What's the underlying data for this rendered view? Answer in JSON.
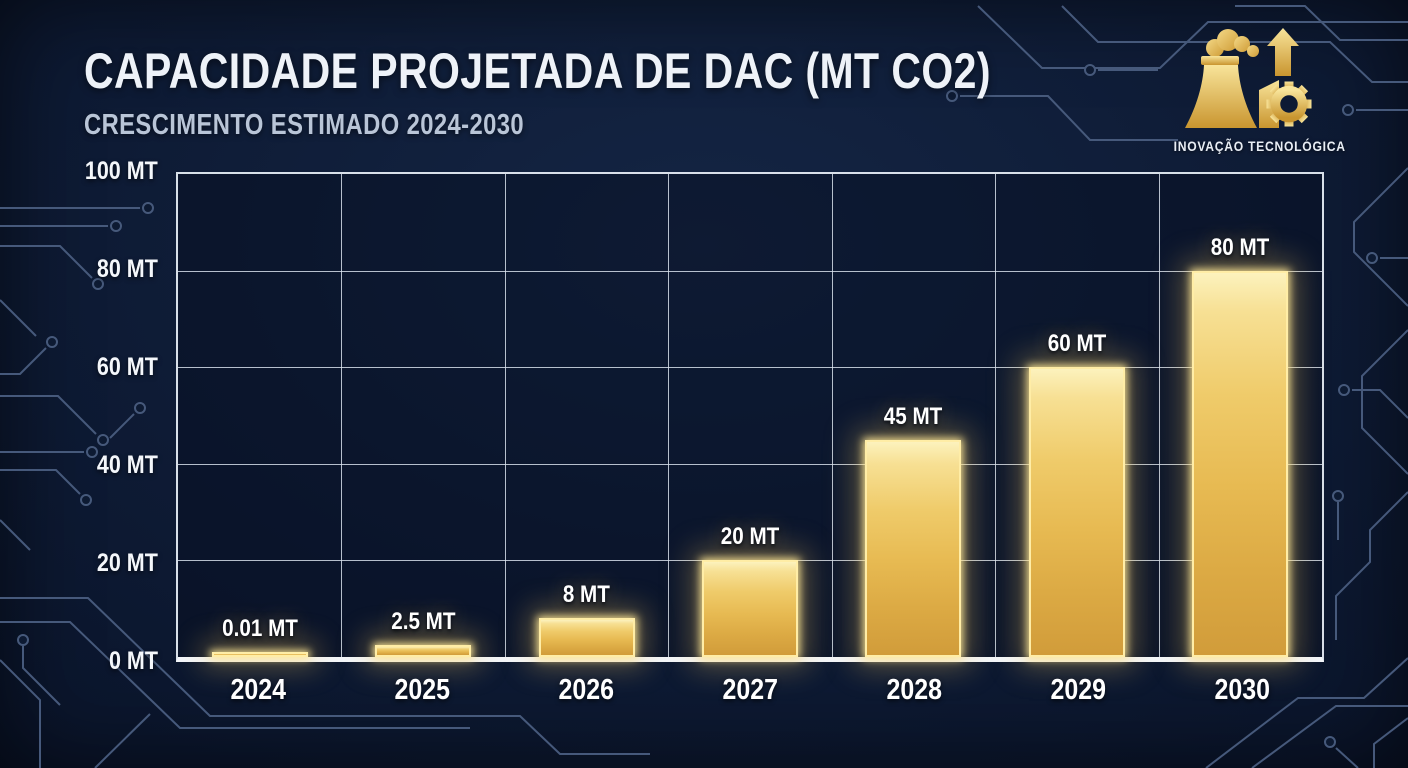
{
  "header": {
    "title": "CAPACIDADE PROJETADA DE DAC (MT CO2)",
    "subtitle": "CRESCIMENTO ESTIMADO 2024-2030"
  },
  "branding": {
    "tagline": "INOVAÇÃO TECNOLÓGICA",
    "icon_names": [
      "smoke-icon",
      "cooling-tower-icon",
      "plant-building-icon",
      "arrow-up-icon",
      "gear-icon"
    ],
    "gold": "#e9c45e"
  },
  "colors": {
    "background": "#0d1a32",
    "circuit_lines": "#46597b",
    "gridline": "#dde5f0",
    "axis": "#f3f6fb",
    "bar_top": "#fcf2bd",
    "bar_mid": "#efcb6a",
    "bar_bottom": "#d19c3a",
    "bar_glow": "#f3c65c",
    "title_text": "#eef2f8",
    "subtitle_text": "#b9c5d7"
  },
  "chart_data": {
    "type": "bar",
    "title": "CAPACIDADE PROJETADA DE DAC (MT CO2)",
    "subtitle": "CRESCIMENTO ESTIMADO 2024-2030",
    "categories": [
      "2024",
      "2025",
      "2026",
      "2027",
      "2028",
      "2029",
      "2030"
    ],
    "values": [
      0.01,
      2.5,
      8,
      20,
      45,
      60,
      80
    ],
    "bar_labels": [
      "0.01 MT",
      "2.5 MT",
      "8 MT",
      "20 MT",
      "45 MT",
      "60 MT",
      "80 MT"
    ],
    "unit": "MT",
    "ylim": [
      0,
      100
    ],
    "yticks": [
      0,
      20,
      40,
      60,
      80,
      100
    ],
    "ytick_labels": [
      "0 MT",
      "20 MT",
      "40 MT",
      "60 MT",
      "80 MT",
      "100 MT"
    ],
    "grid": true,
    "legend_position": "none",
    "xlabel": "",
    "ylabel": ""
  }
}
